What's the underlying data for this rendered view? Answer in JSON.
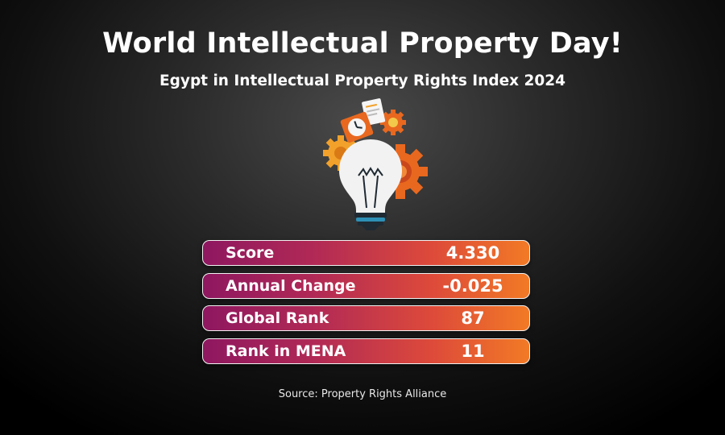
{
  "header": {
    "title": "World Intellectual Property Day!",
    "subtitle": "Egypt in Intellectual Property Rights Index 2024"
  },
  "illustration": {
    "icons": [
      "lightbulb-icon",
      "gear-icon",
      "clock-icon",
      "document-icon"
    ],
    "colors": {
      "gear_orange": "#e8681f",
      "gear_yellow": "#f2a12a",
      "bulb": "#f2f2f2",
      "base": "#1f2a33"
    }
  },
  "stats": {
    "rows": [
      {
        "label": "Score",
        "value": "4.330"
      },
      {
        "label": "Annual Change",
        "value": "-0.025"
      },
      {
        "label": "Global Rank",
        "value": "87"
      },
      {
        "label": "Rank in MENA",
        "value": "11"
      }
    ],
    "gradient": [
      "#8e1760",
      "#f27a25"
    ]
  },
  "footer": {
    "source": "Source: Property Rights Alliance"
  }
}
